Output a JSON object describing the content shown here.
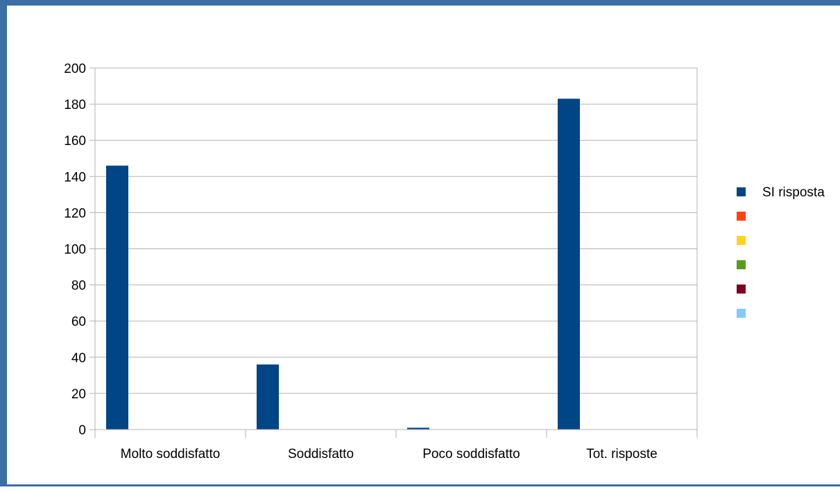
{
  "chart_data": {
    "type": "bar",
    "title": "",
    "xlabel": "",
    "ylabel": "",
    "categories": [
      "Molto soddisfatto",
      "Soddisfatto",
      "Poco soddisfatto",
      "Tot. risposte"
    ],
    "series": [
      {
        "name": "SI risposta",
        "color": "#004586",
        "values": [
          146,
          36,
          1,
          183
        ]
      },
      {
        "name": "",
        "color": "#ff420e",
        "values": [
          0,
          0,
          0,
          0
        ]
      },
      {
        "name": "",
        "color": "#ffd320",
        "values": [
          0,
          0,
          0,
          0
        ]
      },
      {
        "name": "",
        "color": "#579d1c",
        "values": [
          0,
          0,
          0,
          0
        ]
      },
      {
        "name": "",
        "color": "#7e0021",
        "values": [
          0,
          0,
          0,
          0
        ]
      },
      {
        "name": "",
        "color": "#83caff",
        "values": [
          0,
          0,
          0,
          0
        ]
      }
    ],
    "ylim": [
      0,
      200
    ],
    "yticks": [
      0,
      20,
      40,
      60,
      80,
      100,
      120,
      140,
      160,
      180,
      200
    ],
    "grid": true,
    "legend_position": "right"
  },
  "colors": {
    "frame": "#3a6ea5",
    "grid": "#b3b3b3",
    "axis": "#b3b3b3"
  }
}
